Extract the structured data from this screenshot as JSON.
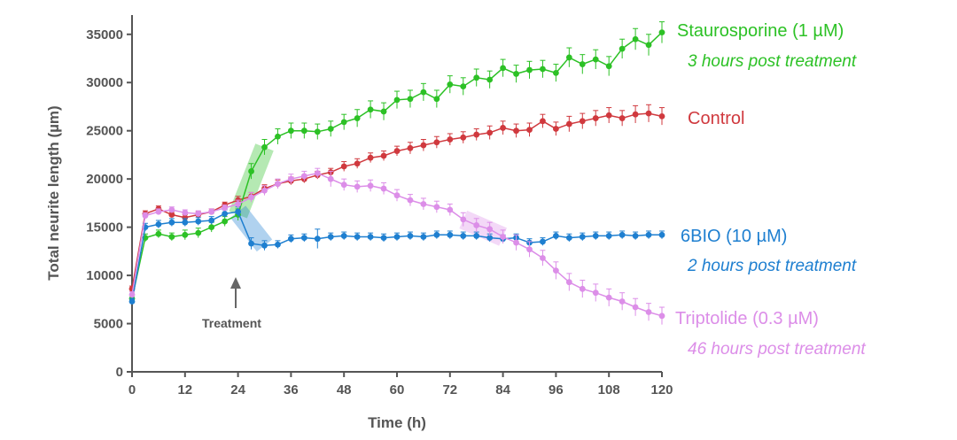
{
  "chart_data": {
    "type": "line",
    "title": "",
    "xlabel": "Time (h)",
    "ylabel": "Total neurite length  (µm)",
    "xlim": [
      0,
      120
    ],
    "ylim": [
      0,
      37000
    ],
    "xticks": [
      "0",
      "12",
      "24",
      "36",
      "48",
      "60",
      "72",
      "84",
      "96",
      "108",
      "120"
    ],
    "yticks": [
      "0",
      "5000",
      "10000",
      "15000",
      "20000",
      "25000",
      "30000",
      "35000"
    ],
    "annotation": {
      "label": "Treatment",
      "x": 24
    },
    "series": [
      {
        "name": "Control",
        "color": "#d0393e",
        "note": "",
        "x": [
          0,
          3,
          6,
          9,
          12,
          15,
          18,
          21,
          24,
          27,
          30,
          33,
          36,
          39,
          42,
          45,
          48,
          51,
          54,
          57,
          60,
          63,
          66,
          69,
          72,
          75,
          78,
          81,
          84,
          87,
          90,
          93,
          96,
          99,
          102,
          105,
          108,
          111,
          114,
          117,
          120
        ],
        "y": [
          8600,
          16400,
          16900,
          16300,
          16000,
          16300,
          16600,
          17300,
          17800,
          18200,
          19000,
          19500,
          19800,
          20000,
          20400,
          20700,
          21300,
          21600,
          22200,
          22400,
          22900,
          23200,
          23500,
          23800,
          24100,
          24300,
          24600,
          24800,
          25300,
          25000,
          25100,
          26000,
          25200,
          25700,
          26000,
          26300,
          26600,
          26300,
          26700,
          26800,
          26500
        ],
        "err": [
          300,
          300,
          300,
          300,
          300,
          300,
          300,
          300,
          400,
          400,
          400,
          400,
          400,
          400,
          400,
          400,
          500,
          500,
          500,
          500,
          500,
          600,
          600,
          600,
          600,
          600,
          600,
          700,
          700,
          700,
          700,
          700,
          700,
          800,
          800,
          800,
          800,
          800,
          900,
          900,
          900
        ]
      },
      {
        "name": "Staurosporine (1 µM)",
        "color": "#2cc125",
        "note": "3 hours post treatment",
        "highlight": [
          24,
          30
        ],
        "x": [
          0,
          3,
          6,
          9,
          12,
          15,
          18,
          21,
          24,
          27,
          30,
          33,
          36,
          39,
          42,
          45,
          48,
          51,
          54,
          57,
          60,
          63,
          66,
          69,
          72,
          75,
          78,
          81,
          84,
          87,
          90,
          93,
          96,
          99,
          102,
          105,
          108,
          111,
          114,
          117,
          120
        ],
        "y": [
          7600,
          13900,
          14300,
          14000,
          14200,
          14400,
          15000,
          15600,
          16300,
          20800,
          23300,
          24400,
          25000,
          25000,
          24900,
          25200,
          25900,
          26300,
          27200,
          27000,
          28200,
          28300,
          29000,
          28300,
          29800,
          29600,
          30500,
          30300,
          31500,
          30900,
          31300,
          31400,
          31000,
          32600,
          31900,
          32400,
          31700,
          33500,
          34500,
          33900,
          35200
        ],
        "err": [
          300,
          400,
          400,
          400,
          500,
          500,
          500,
          500,
          600,
          800,
          800,
          800,
          800,
          800,
          800,
          800,
          800,
          900,
          900,
          900,
          900,
          900,
          900,
          900,
          900,
          900,
          900,
          900,
          900,
          900,
          900,
          900,
          900,
          1000,
          1000,
          1000,
          1000,
          1000,
          1100,
          1100,
          1100
        ]
      },
      {
        "name": "6BIO (10 µM)",
        "color": "#1e7fd0",
        "note": "2 hours post treatment",
        "highlight": [
          24,
          30
        ],
        "x": [
          0,
          3,
          6,
          9,
          12,
          15,
          18,
          21,
          24,
          27,
          30,
          33,
          36,
          39,
          42,
          45,
          48,
          51,
          54,
          57,
          60,
          63,
          66,
          69,
          72,
          75,
          78,
          81,
          84,
          87,
          90,
          93,
          96,
          99,
          102,
          105,
          108,
          111,
          114,
          117,
          120
        ],
        "y": [
          7300,
          15000,
          15300,
          15500,
          15500,
          15600,
          15700,
          16400,
          16600,
          13300,
          13100,
          13200,
          13800,
          13900,
          13800,
          14000,
          14100,
          14000,
          14000,
          13900,
          14000,
          14100,
          14000,
          14200,
          14200,
          14100,
          14100,
          13900,
          13800,
          13900,
          13400,
          13500,
          14100,
          13900,
          14000,
          14100,
          14100,
          14200,
          14100,
          14200,
          14200
        ],
        "err": [
          300,
          400,
          400,
          400,
          400,
          400,
          400,
          400,
          500,
          600,
          500,
          400,
          400,
          400,
          1000,
          400,
          400,
          400,
          400,
          400,
          400,
          400,
          400,
          400,
          400,
          400,
          400,
          400,
          400,
          400,
          400,
          400,
          400,
          400,
          400,
          400,
          400,
          400,
          400,
          400,
          400
        ]
      },
      {
        "name": "Triptolide (0.3 µM)",
        "color": "#dc8ee8",
        "note": "46 hours post treatment",
        "highlight": [
          75,
          84
        ],
        "x": [
          0,
          3,
          6,
          9,
          12,
          15,
          18,
          21,
          24,
          27,
          30,
          33,
          36,
          39,
          42,
          45,
          48,
          51,
          54,
          57,
          60,
          63,
          66,
          69,
          72,
          75,
          78,
          81,
          84,
          87,
          90,
          93,
          96,
          99,
          102,
          105,
          108,
          111,
          114,
          117,
          120
        ],
        "y": [
          8000,
          16200,
          16600,
          16800,
          16500,
          16400,
          16600,
          17000,
          17400,
          18100,
          18800,
          19500,
          20000,
          20300,
          20600,
          20000,
          19400,
          19200,
          19300,
          19000,
          18300,
          17800,
          17400,
          17100,
          16800,
          15800,
          15200,
          14800,
          14000,
          13400,
          12700,
          11800,
          10500,
          9300,
          8600,
          8200,
          7700,
          7300,
          6700,
          6200,
          5800
        ],
        "err": [
          300,
          300,
          300,
          300,
          300,
          300,
          300,
          300,
          400,
          500,
          500,
          500,
          500,
          500,
          500,
          800,
          600,
          600,
          600,
          600,
          600,
          600,
          600,
          600,
          600,
          700,
          700,
          700,
          700,
          800,
          800,
          800,
          900,
          900,
          900,
          900,
          900,
          900,
          900,
          900,
          900
        ]
      }
    ]
  }
}
